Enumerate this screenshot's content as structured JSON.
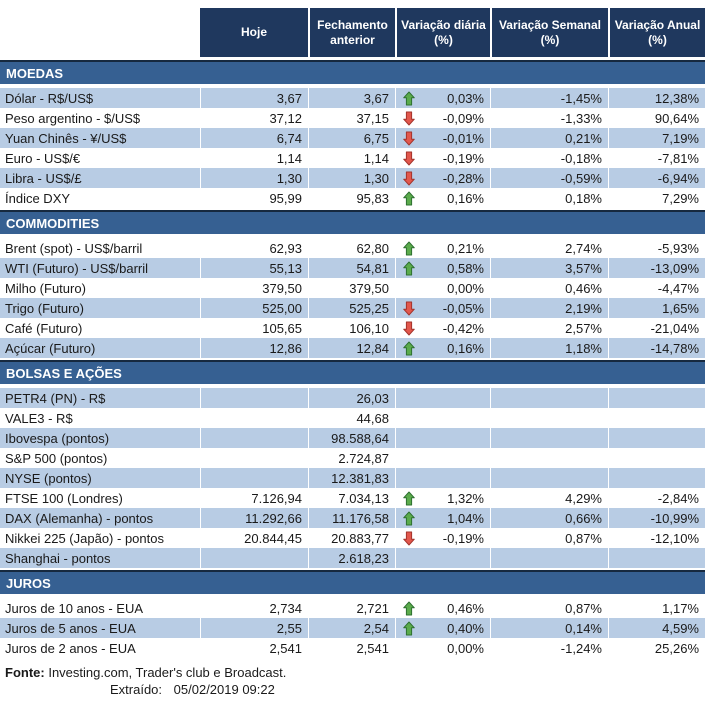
{
  "table": {
    "columns": [
      "Hoje",
      "Fechamento anterior",
      "Variação diária (%)",
      "Variação Semanal (%)",
      "Variação Anual (%)"
    ]
  },
  "sections": [
    {
      "title": "MOEDAS",
      "rows": [
        {
          "label": "Dólar - R$/US$",
          "today": "3,67",
          "prev": "3,67",
          "arrow": "up",
          "daily": "0,03%",
          "weekly": "-1,45%",
          "annual": "12,38%",
          "shaded": true
        },
        {
          "label": "Peso argentino - $/US$",
          "today": "37,12",
          "prev": "37,15",
          "arrow": "down",
          "daily": "-0,09%",
          "weekly": "-1,33%",
          "annual": "90,64%",
          "shaded": false
        },
        {
          "label": "Yuan Chinês - ¥/US$",
          "today": "6,74",
          "prev": "6,75",
          "arrow": "down",
          "daily": "-0,01%",
          "weekly": "0,21%",
          "annual": "7,19%",
          "shaded": true
        },
        {
          "label": "Euro - US$/€",
          "today": "1,14",
          "prev": "1,14",
          "arrow": "down",
          "daily": "-0,19%",
          "weekly": "-0,18%",
          "annual": "-7,81%",
          "shaded": false
        },
        {
          "label": "Libra - US$/£",
          "today": "1,30",
          "prev": "1,30",
          "arrow": "down",
          "daily": "-0,28%",
          "weekly": "-0,59%",
          "annual": "-6,94%",
          "shaded": true
        },
        {
          "label": "Índice DXY",
          "today": "95,99",
          "prev": "95,83",
          "arrow": "up",
          "daily": "0,16%",
          "weekly": "0,18%",
          "annual": "7,29%",
          "shaded": false
        }
      ]
    },
    {
      "title": "COMMODITIES",
      "rows": [
        {
          "label": "Brent (spot) - US$/barril",
          "today": "62,93",
          "prev": "62,80",
          "arrow": "up",
          "daily": "0,21%",
          "weekly": "2,74%",
          "annual": "-5,93%",
          "shaded": false
        },
        {
          "label": "WTI (Futuro) - US$/barril",
          "today": "55,13",
          "prev": "54,81",
          "arrow": "up",
          "daily": "0,58%",
          "weekly": "3,57%",
          "annual": "-13,09%",
          "shaded": true
        },
        {
          "label": "Milho (Futuro)",
          "today": "379,50",
          "prev": "379,50",
          "arrow": "",
          "daily": "0,00%",
          "weekly": "0,46%",
          "annual": "-4,47%",
          "shaded": false
        },
        {
          "label": "Trigo (Futuro)",
          "today": "525,00",
          "prev": "525,25",
          "arrow": "down",
          "daily": "-0,05%",
          "weekly": "2,19%",
          "annual": "1,65%",
          "shaded": true
        },
        {
          "label": "Café (Futuro)",
          "today": "105,65",
          "prev": "106,10",
          "arrow": "down",
          "daily": "-0,42%",
          "weekly": "2,57%",
          "annual": "-21,04%",
          "shaded": false
        },
        {
          "label": "Açúcar (Futuro)",
          "today": "12,86",
          "prev": "12,84",
          "arrow": "up",
          "daily": "0,16%",
          "weekly": "1,18%",
          "annual": "-14,78%",
          "shaded": true
        }
      ]
    },
    {
      "title": "BOLSAS E AÇÕES",
      "rows": [
        {
          "label": "PETR4 (PN) - R$",
          "today": "",
          "prev": "26,03",
          "arrow": "",
          "daily": "",
          "weekly": "",
          "annual": "",
          "shaded": true
        },
        {
          "label": "VALE3 - R$",
          "today": "",
          "prev": "44,68",
          "arrow": "",
          "daily": "",
          "weekly": "",
          "annual": "",
          "shaded": false
        },
        {
          "label": "Ibovespa (pontos)",
          "today": "",
          "prev": "98.588,64",
          "arrow": "",
          "daily": "",
          "weekly": "",
          "annual": "",
          "shaded": true
        },
        {
          "label": "S&P 500 (pontos)",
          "today": "",
          "prev": "2.724,87",
          "arrow": "",
          "daily": "",
          "weekly": "",
          "annual": "",
          "shaded": false
        },
        {
          "label": "NYSE (pontos)",
          "today": "",
          "prev": "12.381,83",
          "arrow": "",
          "daily": "",
          "weekly": "",
          "annual": "",
          "shaded": true
        },
        {
          "label": "FTSE 100 (Londres)",
          "today": "7.126,94",
          "prev": "7.034,13",
          "arrow": "up",
          "daily": "1,32%",
          "weekly": "4,29%",
          "annual": "-2,84%",
          "shaded": false
        },
        {
          "label": "DAX (Alemanha) - pontos",
          "today": "11.292,66",
          "prev": "11.176,58",
          "arrow": "up",
          "daily": "1,04%",
          "weekly": "0,66%",
          "annual": "-10,99%",
          "shaded": true
        },
        {
          "label": "Nikkei 225 (Japão) - pontos",
          "today": "20.844,45",
          "prev": "20.883,77",
          "arrow": "down",
          "daily": "-0,19%",
          "weekly": "0,87%",
          "annual": "-12,10%",
          "shaded": false
        },
        {
          "label": "Shanghai - pontos",
          "today": "",
          "prev": "2.618,23",
          "arrow": "",
          "daily": "",
          "weekly": "",
          "annual": "",
          "shaded": true
        }
      ]
    },
    {
      "title": "JUROS",
      "rows": [
        {
          "label": "Juros de 10 anos - EUA",
          "today": "2,734",
          "prev": "2,721",
          "arrow": "up",
          "daily": "0,46%",
          "weekly": "0,87%",
          "annual": "1,17%",
          "shaded": false
        },
        {
          "label": "Juros de 5 anos - EUA",
          "today": "2,55",
          "prev": "2,54",
          "arrow": "up",
          "daily": "0,40%",
          "weekly": "0,14%",
          "annual": "4,59%",
          "shaded": true
        },
        {
          "label": "Juros de 2 anos - EUA",
          "today": "2,541",
          "prev": "2,541",
          "arrow": "",
          "daily": "0,00%",
          "weekly": "-1,24%",
          "annual": "25,26%",
          "shaded": false
        }
      ]
    }
  ],
  "footer": {
    "source_label": "Fonte:",
    "source_text": "Investing.com, Trader's club e Broadcast.",
    "extracted_label": "Extraído:",
    "extracted_value": "05/02/2019 09:22"
  },
  "icons": {
    "up": "up-arrow-icon",
    "down": "down-arrow-icon"
  },
  "colors": {
    "header_bg": "#1F385E",
    "section_bg": "#366092",
    "section_top": "#16293F",
    "row_shaded": "#B8CCE4",
    "text": "#1A1A1A",
    "up_fill": "#5BAB4C",
    "up_stroke": "#2E7031",
    "down_fill": "#E2574C",
    "down_stroke": "#A3342C"
  }
}
